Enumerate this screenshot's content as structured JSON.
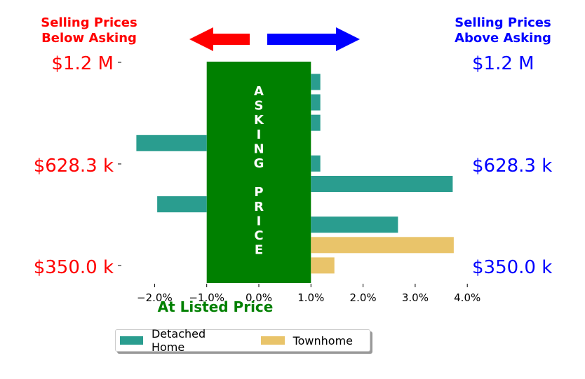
{
  "colors": {
    "below": "#ff0000",
    "above": "#0000ff",
    "asking_box": "#008000",
    "at_listed": "#008000",
    "detached": "#2a9d8f",
    "townhome": "#e9c46a"
  },
  "headers": {
    "below": [
      "Selling Prices",
      "Below Asking"
    ],
    "above": [
      "Selling Prices",
      "Above Asking"
    ]
  },
  "asking_box_label": {
    "top": [
      "A",
      "S",
      "K",
      "I",
      "N",
      "G"
    ],
    "bottom": [
      "P",
      "R",
      "I",
      "C",
      "E"
    ]
  },
  "at_listed_label": "At Listed Price",
  "chart_data": {
    "type": "bar",
    "orientation": "horizontal",
    "xlim": [
      -2.5,
      4.0
    ],
    "x_ticks": [
      -2.0,
      -1.0,
      0.0,
      1.0,
      2.0,
      3.0,
      4.0
    ],
    "x_tick_labels": [
      "−2.0%",
      "−1.0%",
      "0.0%",
      "1.0%",
      "2.0%",
      "3.0%",
      "4.0%"
    ],
    "y_range_k": [
      350.0,
      1200.0
    ],
    "y_ticks_left": [
      "$1.2 M",
      "$628.3 k",
      "$350.0 k"
    ],
    "y_ticks_right": [
      "$1.2 M",
      "$628.3 k",
      "$350.0 k"
    ],
    "asking_band": [
      -1.0,
      1.0
    ],
    "legend": [
      "Detached Home",
      "Townhome"
    ],
    "legend_placement": "bottom",
    "bars": [
      {
        "series": "Detached Home",
        "y_k": 1160,
        "value": 1.18
      },
      {
        "series": "Detached Home",
        "y_k": 1060,
        "value": 1.18
      },
      {
        "series": "Detached Home",
        "y_k": 960,
        "value": 1.18
      },
      {
        "series": "Detached Home",
        "y_k": 860,
        "value": -2.35
      },
      {
        "series": "Detached Home",
        "y_k": 660,
        "value": 1.18
      },
      {
        "series": "Detached Home",
        "y_k": 560,
        "value": 3.72
      },
      {
        "series": "Detached Home",
        "y_k": 460,
        "value": -1.95
      },
      {
        "series": "Detached Home",
        "y_k": 360,
        "value": 2.67
      },
      {
        "series": "Townhome",
        "y_k": 260,
        "value": 3.74
      },
      {
        "series": "Townhome",
        "y_k": 160,
        "value": 1.45
      }
    ]
  }
}
